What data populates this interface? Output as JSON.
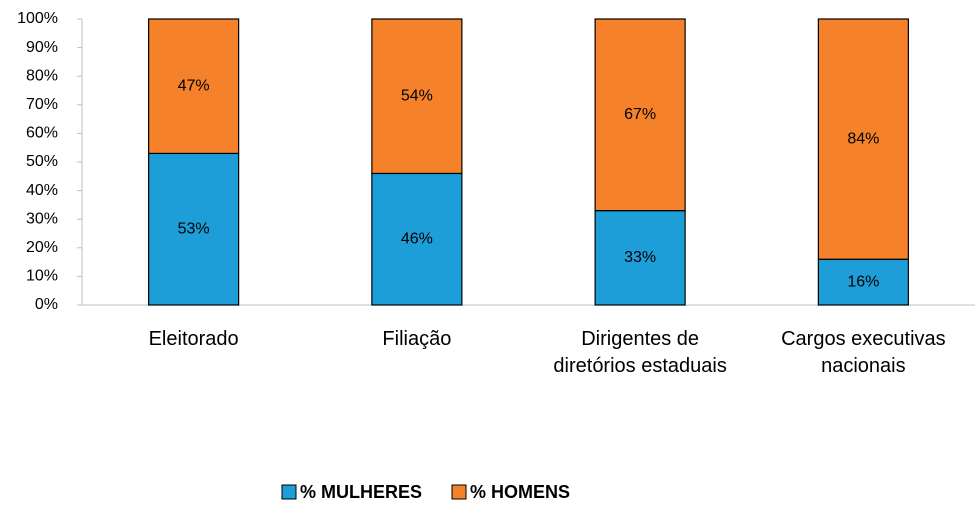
{
  "chart_data": {
    "type": "stacked_bar",
    "categories": [
      "Eleitorado",
      "Filiação",
      "Dirigentes de diretórios estaduais",
      "Cargos executivas nacionais"
    ],
    "series": [
      {
        "name": "% MULHERES",
        "color": "#1e9ed9",
        "values": [
          53,
          46,
          33,
          16
        ],
        "value_labels": [
          "53%",
          "46%",
          "33%",
          "16%"
        ]
      },
      {
        "name": "% HOMENS",
        "color": "#f5822a",
        "values": [
          47,
          54,
          67,
          84
        ],
        "value_labels": [
          "47%",
          "54%",
          "67%",
          "84%"
        ]
      }
    ],
    "ylim": [
      0,
      100
    ],
    "yticks": [
      {
        "value": 0,
        "label": "0%"
      },
      {
        "value": 10,
        "label": "10%"
      },
      {
        "value": 20,
        "label": "20%"
      },
      {
        "value": 30,
        "label": "30%"
      },
      {
        "value": 40,
        "label": "40%"
      },
      {
        "value": 50,
        "label": "50%"
      },
      {
        "value": 60,
        "label": "60%"
      },
      {
        "value": 70,
        "label": "70%"
      },
      {
        "value": 80,
        "label": "80%"
      },
      {
        "value": 90,
        "label": "90%"
      },
      {
        "value": 100,
        "label": "100%"
      }
    ],
    "legend": "bottom"
  }
}
